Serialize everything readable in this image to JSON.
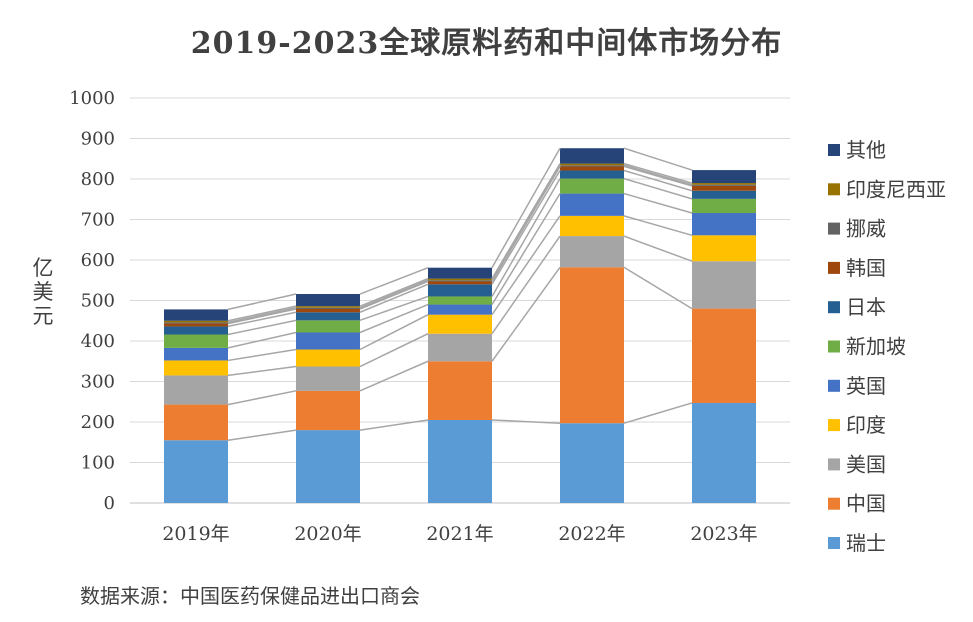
{
  "title": "2019-2023全球原料药和中间体市场分布",
  "source": "数据来源：中国医药保健品进出口商会",
  "chart_data": {
    "type": "bar",
    "stacked": true,
    "title": "2019-2023全球原料药和中间体市场分布",
    "xlabel": "",
    "ylabel": "亿美元",
    "ylim": [
      0,
      1000
    ],
    "yticks": [
      0,
      100,
      200,
      300,
      400,
      500,
      600,
      700,
      800,
      900,
      1000
    ],
    "grid": true,
    "legend": "right",
    "series_lines": true,
    "categories": [
      "2019年",
      "2020年",
      "2021年",
      "2022年",
      "2023年"
    ],
    "series": [
      {
        "name": "瑞士",
        "color": "#5b9bd5",
        "values": [
          155,
          180,
          205,
          197,
          247
        ]
      },
      {
        "name": "中国",
        "color": "#ed7d31",
        "values": [
          88,
          97,
          145,
          385,
          233
        ]
      },
      {
        "name": "美国",
        "color": "#a5a5a5",
        "values": [
          72,
          60,
          68,
          77,
          117
        ]
      },
      {
        "name": "印度",
        "color": "#ffc000",
        "values": [
          37,
          42,
          47,
          50,
          64
        ]
      },
      {
        "name": "英国",
        "color": "#4472c4",
        "values": [
          31,
          42,
          25,
          55,
          55
        ]
      },
      {
        "name": "新加坡",
        "color": "#70ad47",
        "values": [
          33,
          30,
          20,
          37,
          35
        ]
      },
      {
        "name": "日本",
        "color": "#255e91",
        "values": [
          20,
          20,
          30,
          20,
          20
        ]
      },
      {
        "name": "韩国",
        "color": "#9e480e",
        "values": [
          7,
          8,
          7,
          10,
          12
        ]
      },
      {
        "name": "挪威",
        "color": "#636363",
        "values": [
          3,
          3,
          3,
          3,
          3
        ]
      },
      {
        "name": "印度尼西亚",
        "color": "#997300",
        "values": [
          4,
          4,
          4,
          4,
          4
        ]
      },
      {
        "name": "其他",
        "color": "#264478",
        "values": [
          28,
          30,
          27,
          38,
          32
        ]
      }
    ]
  }
}
